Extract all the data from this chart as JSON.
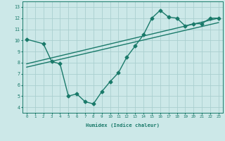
{
  "line1_x": [
    0,
    2,
    3,
    4,
    5,
    6,
    7,
    8,
    9,
    10,
    11,
    12,
    13,
    14,
    15,
    16,
    17,
    18,
    19,
    20,
    21,
    22,
    23
  ],
  "line1_y": [
    10.1,
    9.7,
    8.1,
    7.9,
    5.0,
    5.2,
    4.5,
    4.3,
    5.4,
    6.3,
    7.1,
    8.5,
    9.5,
    10.5,
    12.0,
    12.7,
    12.1,
    12.0,
    11.3,
    11.5,
    11.5,
    12.0,
    12.0
  ],
  "line2_x": [
    0,
    23
  ],
  "line2_y": [
    7.9,
    12.0
  ],
  "line3_x": [
    0,
    23
  ],
  "line3_y": [
    7.6,
    11.6
  ],
  "color": "#1a7a6a",
  "bg_color": "#cce8e8",
  "grid_color": "#aacfcf",
  "xlabel": "Humidex (Indice chaleur)",
  "xlim": [
    -0.5,
    23.5
  ],
  "ylim": [
    3.5,
    13.5
  ],
  "yticks": [
    4,
    5,
    6,
    7,
    8,
    9,
    10,
    11,
    12,
    13
  ],
  "xticks": [
    0,
    1,
    2,
    3,
    4,
    5,
    6,
    7,
    8,
    9,
    10,
    11,
    12,
    13,
    14,
    15,
    16,
    17,
    18,
    19,
    20,
    21,
    22,
    23
  ],
  "xtick_labels": [
    "0",
    "1",
    "2",
    "3",
    "4",
    "5",
    "6",
    "7",
    "8",
    "9",
    "10",
    "11",
    "12",
    "13",
    "14",
    "15",
    "16",
    "17",
    "18",
    "19",
    "20",
    "21",
    "22",
    "23"
  ],
  "marker": "D",
  "markersize": 2.5,
  "linewidth": 1.0
}
